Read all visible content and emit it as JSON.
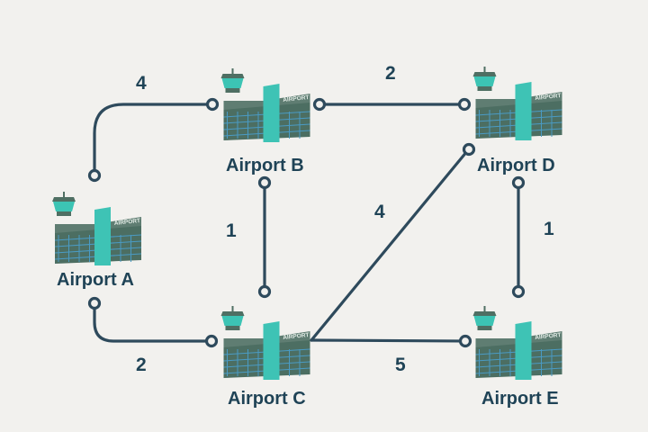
{
  "diagram": {
    "nodes": [
      {
        "id": "A",
        "label": "Airport A",
        "sign": "AIRPORT"
      },
      {
        "id": "B",
        "label": "Airport B",
        "sign": "AIRPORT"
      },
      {
        "id": "C",
        "label": "Airport C",
        "sign": "AIRPORT"
      },
      {
        "id": "D",
        "label": "Airport D",
        "sign": "AIRPORT"
      },
      {
        "id": "E",
        "label": "Airport E",
        "sign": "AIRPORT"
      }
    ],
    "edges": [
      {
        "from": "A",
        "to": "B",
        "weight": "4"
      },
      {
        "from": "A",
        "to": "C",
        "weight": "2"
      },
      {
        "from": "B",
        "to": "C",
        "weight": "1"
      },
      {
        "from": "B",
        "to": "D",
        "weight": "2"
      },
      {
        "from": "C",
        "to": "D",
        "weight": "4"
      },
      {
        "from": "C",
        "to": "E",
        "weight": "5"
      },
      {
        "from": "D",
        "to": "E",
        "weight": "1"
      }
    ],
    "colors": {
      "edge": "#2e4a5c",
      "building": "#4c6e62",
      "roof": "#5f7d72",
      "window": "#4a9bc4",
      "accent": "#3ec3b5",
      "tower_cab": "#3cc4b4",
      "tower_top": "#4f6f63",
      "text": "#1f4356"
    }
  }
}
